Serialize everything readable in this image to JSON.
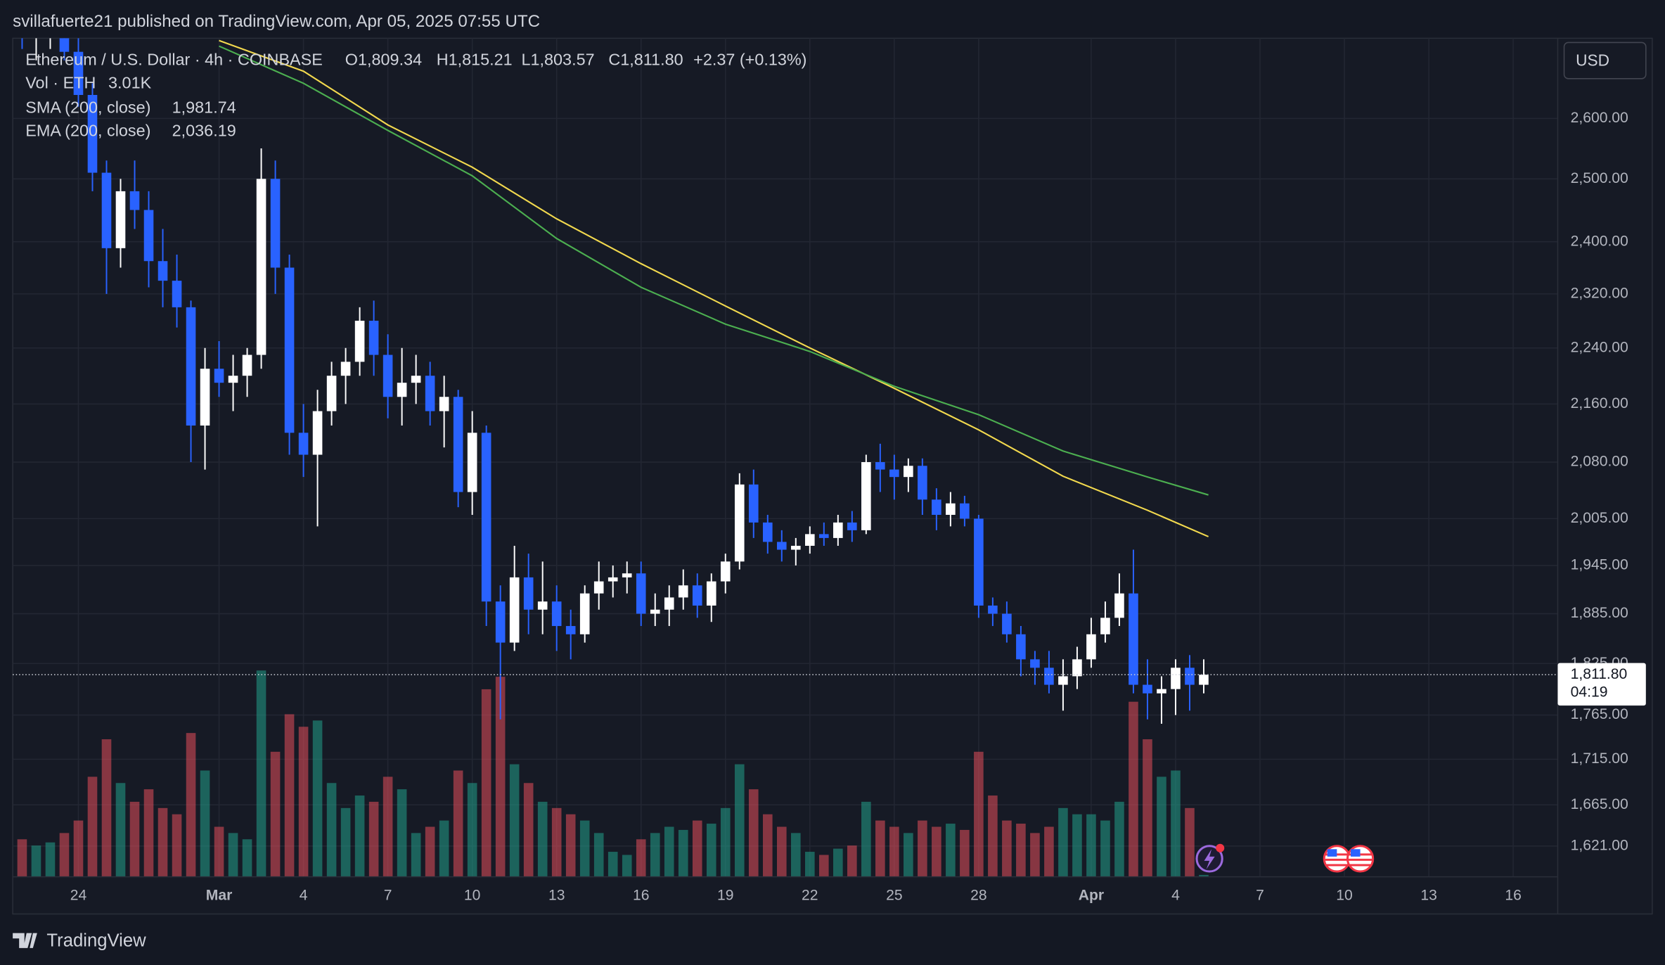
{
  "watermark": "svillafuerte21 published on TradingView.com, Apr 05, 2025 07:55 UTC",
  "footer_brand": "TradingView",
  "currency_button": "USD",
  "chart_data": {
    "type": "candlestick",
    "title": "Ethereum / U.S. Dollar · 4h · COINBASE",
    "ohlc_header": [
      "O1,809.34",
      "H1,815.21",
      "L1,803.57",
      "C1,811.80",
      "+2.37 (+0.13%)"
    ],
    "log_scale": true,
    "grid": true,
    "up_color": "#ffffff",
    "down_color": "#2962ff",
    "last_price_label": "1,811.80",
    "countdown": "04:19",
    "xlim": [
      "2025-02-21T16:00Z",
      "2025-04-17T14:00Z"
    ],
    "xticks": [
      {
        "value": "2025-02-24T00:00Z",
        "label": "24"
      },
      {
        "value": "2025-03-01T00:00Z",
        "label": "Mar"
      },
      {
        "value": "2025-03-04T00:00Z",
        "label": "4"
      },
      {
        "value": "2025-03-07T00:00Z",
        "label": "7"
      },
      {
        "value": "2025-03-10T00:00Z",
        "label": "10"
      },
      {
        "value": "2025-03-13T00:00Z",
        "label": "13"
      },
      {
        "value": "2025-03-16T00:00Z",
        "label": "16"
      },
      {
        "value": "2025-03-19T00:00Z",
        "label": "19"
      },
      {
        "value": "2025-03-22T00:00Z",
        "label": "22"
      },
      {
        "value": "2025-03-25T00:00Z",
        "label": "25"
      },
      {
        "value": "2025-03-28T00:00Z",
        "label": "28"
      },
      {
        "value": "2025-04-01T00:00Z",
        "label": "Apr"
      },
      {
        "value": "2025-04-04T00:00Z",
        "label": "4"
      },
      {
        "value": "2025-04-07T00:00Z",
        "label": "7"
      },
      {
        "value": "2025-04-10T00:00Z",
        "label": "10"
      },
      {
        "value": "2025-04-13T00:00Z",
        "label": "13"
      },
      {
        "value": "2025-04-16T00:00Z",
        "label": "16"
      }
    ],
    "ylim": [
      1589,
      2739
    ],
    "yticks": [
      {
        "value": 1621,
        "label": "1,621.00"
      },
      {
        "value": 1665,
        "label": "1,665.00"
      },
      {
        "value": 1715,
        "label": "1,715.00"
      },
      {
        "value": 1765,
        "label": "1,765.00"
      },
      {
        "value": 1825,
        "label": "1,825.00"
      },
      {
        "value": 1885,
        "label": "1,885.00"
      },
      {
        "value": 1945,
        "label": "1,945.00"
      },
      {
        "value": 2005,
        "label": "2,005.00"
      },
      {
        "value": 2080,
        "label": "2,080.00"
      },
      {
        "value": 2160,
        "label": "2,160.00"
      },
      {
        "value": 2240,
        "label": "2,240.00"
      },
      {
        "value": 2320,
        "label": "2,320.00"
      },
      {
        "value": 2400,
        "label": "2,400.00"
      },
      {
        "value": 2500,
        "label": "2,500.00"
      },
      {
        "value": 2600,
        "label": "2,600.00"
      }
    ],
    "x": [
      "2025-02-22T00:00Z",
      "2025-02-22T12:00Z",
      "2025-02-23T00:00Z",
      "2025-02-23T12:00Z",
      "2025-02-24T00:00Z",
      "2025-02-24T12:00Z",
      "2025-02-25T00:00Z",
      "2025-02-25T12:00Z",
      "2025-02-26T00:00Z",
      "2025-02-26T12:00Z",
      "2025-02-27T00:00Z",
      "2025-02-27T12:00Z",
      "2025-02-28T00:00Z",
      "2025-02-28T12:00Z",
      "2025-03-01T00:00Z",
      "2025-03-01T12:00Z",
      "2025-03-02T00:00Z",
      "2025-03-02T12:00Z",
      "2025-03-03T00:00Z",
      "2025-03-03T12:00Z",
      "2025-03-04T00:00Z",
      "2025-03-04T12:00Z",
      "2025-03-05T00:00Z",
      "2025-03-05T12:00Z",
      "2025-03-06T00:00Z",
      "2025-03-06T12:00Z",
      "2025-03-07T00:00Z",
      "2025-03-07T12:00Z",
      "2025-03-08T00:00Z",
      "2025-03-08T12:00Z",
      "2025-03-09T00:00Z",
      "2025-03-09T12:00Z",
      "2025-03-10T00:00Z",
      "2025-03-10T12:00Z",
      "2025-03-11T00:00Z",
      "2025-03-11T12:00Z",
      "2025-03-12T00:00Z",
      "2025-03-12T12:00Z",
      "2025-03-13T00:00Z",
      "2025-03-13T12:00Z",
      "2025-03-14T00:00Z",
      "2025-03-14T12:00Z",
      "2025-03-15T00:00Z",
      "2025-03-15T12:00Z",
      "2025-03-16T00:00Z",
      "2025-03-16T12:00Z",
      "2025-03-17T00:00Z",
      "2025-03-17T12:00Z",
      "2025-03-18T00:00Z",
      "2025-03-18T12:00Z",
      "2025-03-19T00:00Z",
      "2025-03-19T12:00Z",
      "2025-03-20T00:00Z",
      "2025-03-20T12:00Z",
      "2025-03-21T00:00Z",
      "2025-03-21T12:00Z",
      "2025-03-22T00:00Z",
      "2025-03-22T12:00Z",
      "2025-03-23T00:00Z",
      "2025-03-23T12:00Z",
      "2025-03-24T00:00Z",
      "2025-03-24T12:00Z",
      "2025-03-25T00:00Z",
      "2025-03-25T12:00Z",
      "2025-03-26T00:00Z",
      "2025-03-26T12:00Z",
      "2025-03-27T00:00Z",
      "2025-03-27T12:00Z",
      "2025-03-28T00:00Z",
      "2025-03-28T12:00Z",
      "2025-03-29T00:00Z",
      "2025-03-29T12:00Z",
      "2025-03-30T00:00Z",
      "2025-03-30T12:00Z",
      "2025-03-31T00:00Z",
      "2025-03-31T12:00Z",
      "2025-04-01T00:00Z",
      "2025-04-01T12:00Z",
      "2025-04-02T00:00Z",
      "2025-04-02T12:00Z",
      "2025-04-03T00:00Z",
      "2025-04-03T12:00Z",
      "2025-04-04T00:00Z",
      "2025-04-04T12:00Z",
      "2025-04-05T00:00Z"
    ],
    "open": [
      2755,
      2740,
      2745,
      2770,
      2715,
      2640,
      2510,
      2390,
      2480,
      2450,
      2370,
      2340,
      2300,
      2130,
      2210,
      2190,
      2200,
      2230,
      2500,
      2360,
      2120,
      2090,
      2150,
      2200,
      2220,
      2280,
      2230,
      2170,
      2190,
      2200,
      2150,
      2170,
      2040,
      2120,
      1900,
      1850,
      1930,
      1890,
      1900,
      1870,
      1860,
      1910,
      1925,
      1930,
      1935,
      1885,
      1890,
      1905,
      1920,
      1895,
      1925,
      1950,
      2050,
      2000,
      1975,
      1965,
      1970,
      1985,
      1980,
      2000,
      1990,
      2080,
      2070,
      2060,
      2075,
      2030,
      2010,
      2025,
      2005,
      1895,
      1885,
      1860,
      1830,
      1820,
      1800,
      1810,
      1830,
      1860,
      1880,
      1910,
      1800,
      1790,
      1795,
      1820,
      1800
    ],
    "high": [
      2790,
      2770,
      2790,
      2800,
      2740,
      2660,
      2530,
      2500,
      2530,
      2480,
      2420,
      2380,
      2310,
      2240,
      2250,
      2230,
      2240,
      2550,
      2530,
      2380,
      2160,
      2180,
      2220,
      2240,
      2300,
      2310,
      2260,
      2240,
      2230,
      2220,
      2200,
      2180,
      2150,
      2130,
      1920,
      1970,
      1960,
      1950,
      1920,
      1890,
      1920,
      1950,
      1945,
      1950,
      1950,
      1910,
      1920,
      1940,
      1935,
      1935,
      1960,
      2065,
      2070,
      2010,
      1990,
      1980,
      1995,
      2000,
      2010,
      2015,
      2090,
      2105,
      2090,
      2085,
      2085,
      2045,
      2040,
      2035,
      2010,
      1905,
      1900,
      1870,
      1840,
      1840,
      1830,
      1845,
      1880,
      1900,
      1935,
      1965,
      1830,
      1810,
      1830,
      1835,
      1830
    ],
    "low": [
      2720,
      2700,
      2720,
      2700,
      2620,
      2480,
      2320,
      2360,
      2420,
      2330,
      2300,
      2270,
      2080,
      2070,
      2170,
      2150,
      2170,
      2210,
      2320,
      2090,
      2060,
      1995,
      2130,
      2160,
      2200,
      2200,
      2140,
      2130,
      2160,
      2130,
      2100,
      2020,
      2010,
      1870,
      1760,
      1840,
      1860,
      1860,
      1840,
      1830,
      1850,
      1890,
      1905,
      1910,
      1870,
      1870,
      1870,
      1890,
      1880,
      1875,
      1910,
      1940,
      1980,
      1960,
      1950,
      1945,
      1960,
      1970,
      1970,
      1975,
      1985,
      2040,
      2030,
      2040,
      2010,
      1990,
      1995,
      1995,
      1880,
      1870,
      1850,
      1810,
      1800,
      1790,
      1770,
      1795,
      1820,
      1850,
      1870,
      1790,
      1760,
      1755,
      1765,
      1770,
      1790
    ],
    "close": [
      2740,
      2745,
      2770,
      2715,
      2640,
      2510,
      2390,
      2480,
      2450,
      2370,
      2340,
      2300,
      2130,
      2210,
      2190,
      2200,
      2230,
      2500,
      2360,
      2120,
      2090,
      2150,
      2200,
      2220,
      2280,
      2230,
      2170,
      2190,
      2200,
      2150,
      2170,
      2040,
      2120,
      1900,
      1850,
      1930,
      1890,
      1900,
      1870,
      1860,
      1910,
      1925,
      1930,
      1935,
      1885,
      1890,
      1905,
      1920,
      1895,
      1925,
      1950,
      2050,
      2000,
      1975,
      1965,
      1970,
      1985,
      1980,
      2000,
      1990,
      2080,
      2070,
      2060,
      2075,
      2030,
      2010,
      2025,
      2005,
      1895,
      1885,
      1860,
      1830,
      1820,
      1800,
      1810,
      1830,
      1860,
      1880,
      1910,
      1800,
      1790,
      1795,
      1820,
      1800,
      1811.8
    ],
    "volume": {
      "name": "Vol · ETH",
      "legend_value": "3.01K",
      "up_color": "#22ab94",
      "down_color": "#f7525f",
      "ylim": [
        0,
        340000
      ],
      "values": [
        60000,
        50000,
        55000,
        70000,
        90000,
        160000,
        220000,
        150000,
        120000,
        140000,
        110000,
        100000,
        230000,
        170000,
        80000,
        70000,
        60000,
        330000,
        200000,
        260000,
        240000,
        250000,
        150000,
        110000,
        130000,
        120000,
        160000,
        140000,
        70000,
        80000,
        90000,
        170000,
        150000,
        300000,
        320000,
        180000,
        150000,
        120000,
        110000,
        100000,
        90000,
        70000,
        40000,
        35000,
        60000,
        70000,
        80000,
        75000,
        90000,
        85000,
        110000,
        180000,
        140000,
        100000,
        80000,
        70000,
        40000,
        35000,
        45000,
        50000,
        120000,
        90000,
        80000,
        70000,
        90000,
        80000,
        85000,
        75000,
        200000,
        130000,
        90000,
        85000,
        70000,
        80000,
        110000,
        100000,
        100000,
        90000,
        120000,
        280000,
        220000,
        160000,
        170000,
        110000,
        3010
      ]
    },
    "indicators": [
      {
        "name": "SMA (200, close)",
        "color": "#f2d94e",
        "legend_value": "1,981.74",
        "x": [
          "2025-03-01T00:00Z",
          "2025-03-04T00:00Z",
          "2025-03-07T00:00Z",
          "2025-03-10T00:00Z",
          "2025-03-13T00:00Z",
          "2025-03-16T00:00Z",
          "2025-03-19T00:00Z",
          "2025-03-22T00:00Z",
          "2025-03-25T00:00Z",
          "2025-03-28T00:00Z",
          "2025-03-31T00:00Z",
          "2025-04-03T00:00Z",
          "2025-04-05T04:00Z"
        ],
        "values": [
          2735,
          2681,
          2589,
          2519,
          2436,
          2366,
          2302,
          2240,
          2182,
          2124,
          2061,
          2016,
          1981.74
        ]
      },
      {
        "name": "EMA (200, close)",
        "color": "#4caf50",
        "legend_value": "2,036.19",
        "x": [
          "2025-03-01T00:00Z",
          "2025-03-04T00:00Z",
          "2025-03-07T00:00Z",
          "2025-03-10T00:00Z",
          "2025-03-13T00:00Z",
          "2025-03-16T00:00Z",
          "2025-03-19T00:00Z",
          "2025-03-22T00:00Z",
          "2025-03-25T00:00Z",
          "2025-03-28T00:00Z",
          "2025-03-31T00:00Z",
          "2025-04-03T00:00Z",
          "2025-04-05T04:00Z"
        ],
        "values": [
          2725,
          2660,
          2580,
          2505,
          2405,
          2330,
          2275,
          2235,
          2185,
          2145,
          2095,
          2060,
          2036.19
        ]
      }
    ]
  }
}
